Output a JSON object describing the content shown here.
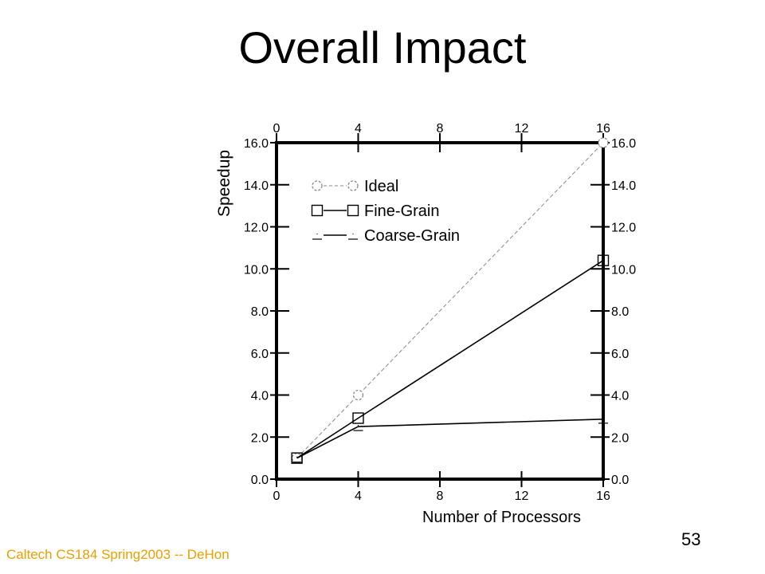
{
  "slide": {
    "title": "Overall Impact",
    "footer": "Caltech CS184 Spring2003 -- DeHon",
    "page_number": "53",
    "footer_color": "#e8a000"
  },
  "chart_data": {
    "type": "line",
    "xlabel": "Number of Processors",
    "ylabel": "Speedup",
    "xlim": [
      0,
      16
    ],
    "ylim": [
      0,
      16
    ],
    "xticks": [
      "0",
      "4",
      "8",
      "12",
      "16"
    ],
    "yticks": [
      "0.0",
      "2.0",
      "4.0",
      "6.0",
      "8.0",
      "10.0",
      "12.0",
      "14.0",
      "16.0"
    ],
    "legend_position": "top-left",
    "grid": false,
    "series": [
      {
        "name": "Ideal",
        "marker": "circle",
        "style": "dashed",
        "color": "#888888",
        "x": [
          1,
          4,
          16
        ],
        "y": [
          1.0,
          4.0,
          16.0
        ]
      },
      {
        "name": "Fine-Grain",
        "marker": "square",
        "style": "solid",
        "color": "#000000",
        "x": [
          1,
          4,
          16
        ],
        "y": [
          1.0,
          2.9,
          10.4
        ]
      },
      {
        "name": "Coarse-Grain",
        "marker": "triangle",
        "style": "solid",
        "color": "#000000",
        "x": [
          1,
          4,
          16
        ],
        "y": [
          1.0,
          2.5,
          2.85
        ]
      }
    ]
  }
}
